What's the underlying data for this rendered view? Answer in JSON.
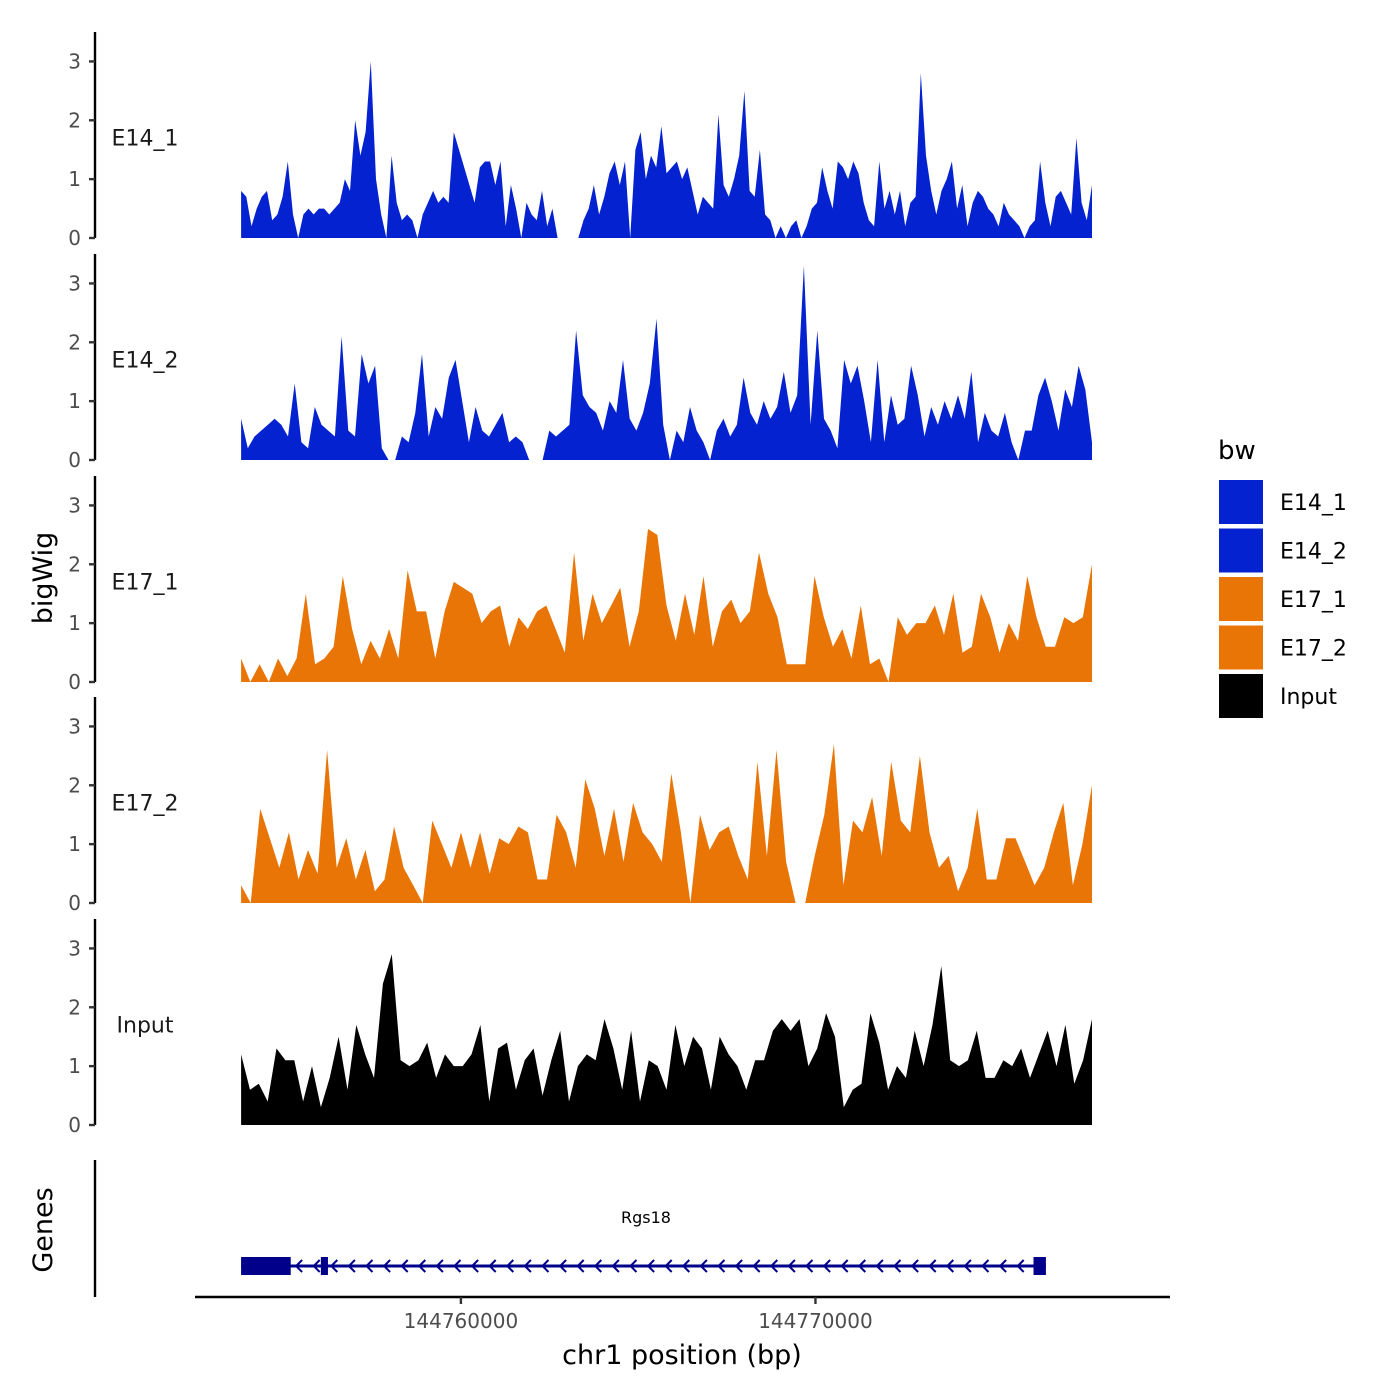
{
  "chart_data": {
    "type": "area",
    "ylabel": "bigWig",
    "xlabel": "chr1 position (bp)",
    "ylim": [
      0,
      3.5
    ],
    "yticks": [
      "0",
      "1",
      "2",
      "3"
    ],
    "xlim": [
      144752500,
      144780000
    ],
    "xticks": [
      {
        "value": 144760000,
        "label": "144760000"
      },
      {
        "value": 144770000,
        "label": "144770000"
      }
    ],
    "x_start": 144753800,
    "x_end": 144777800,
    "legend": {
      "title": "bw",
      "position": "right",
      "entries": [
        {
          "label": "E14_1",
          "color": "#0522D1"
        },
        {
          "label": "E14_2",
          "color": "#0522D1"
        },
        {
          "label": "E17_1",
          "color": "#E87506"
        },
        {
          "label": "E17_2",
          "color": "#E87506"
        },
        {
          "label": "Input",
          "color": "#000000"
        }
      ]
    },
    "series": [
      {
        "name": "E14_1",
        "color": "#0522D1",
        "values": [
          0.8,
          0.7,
          0.2,
          0.5,
          0.7,
          0.8,
          0.3,
          0.4,
          0.7,
          1.3,
          0.4,
          0.0,
          0.4,
          0.5,
          0.4,
          0.5,
          0.5,
          0.4,
          0.5,
          0.6,
          1.0,
          0.8,
          2.0,
          1.4,
          1.8,
          3.0,
          1.0,
          0.4,
          0.0,
          1.4,
          0.6,
          0.3,
          0.4,
          0.3,
          0.0,
          0.4,
          0.6,
          0.8,
          0.6,
          0.7,
          0.6,
          1.8,
          1.5,
          1.2,
          0.9,
          0.6,
          1.2,
          1.3,
          1.3,
          0.9,
          1.3,
          0.2,
          0.9,
          0.5,
          0.0,
          0.6,
          0.4,
          0.3,
          0.8,
          0.2,
          0.5,
          0.0,
          0.0,
          0.0,
          0.0,
          0.0,
          0.3,
          0.5,
          0.9,
          0.4,
          0.7,
          1.1,
          1.3,
          0.9,
          1.3,
          0.0,
          1.5,
          1.8,
          1.0,
          1.4,
          1.2,
          1.9,
          1.1,
          1.2,
          1.3,
          1.0,
          1.2,
          0.8,
          0.4,
          0.7,
          0.6,
          0.5,
          2.1,
          0.9,
          0.7,
          1.0,
          1.4,
          2.5,
          0.8,
          0.7,
          1.5,
          0.4,
          0.3,
          0.0,
          0.2,
          0.0,
          0.2,
          0.3,
          0.0,
          0.2,
          0.5,
          0.6,
          1.2,
          0.8,
          0.5,
          1.3,
          1.2,
          1.0,
          1.3,
          1.1,
          0.6,
          0.3,
          0.2,
          1.3,
          0.5,
          0.8,
          0.4,
          0.8,
          0.2,
          0.6,
          0.7,
          2.8,
          1.4,
          0.8,
          0.4,
          0.8,
          1.0,
          1.3,
          0.5,
          0.9,
          0.2,
          0.6,
          0.8,
          0.7,
          0.5,
          0.4,
          0.2,
          0.6,
          0.4,
          0.3,
          0.2,
          0.0,
          0.2,
          0.3,
          1.3,
          0.6,
          0.2,
          0.7,
          0.8,
          0.6,
          0.4,
          1.7,
          0.6,
          0.3,
          0.9
        ]
      },
      {
        "name": "E14_2",
        "color": "#0522D1",
        "values": [
          0.7,
          0.2,
          0.4,
          0.5,
          0.6,
          0.7,
          0.6,
          0.4,
          1.3,
          0.3,
          0.2,
          0.9,
          0.6,
          0.5,
          0.4,
          2.1,
          0.5,
          0.4,
          1.8,
          1.3,
          1.6,
          0.2,
          0.0,
          0.0,
          0.4,
          0.3,
          0.8,
          1.8,
          0.4,
          0.9,
          0.7,
          1.4,
          1.7,
          1.0,
          0.3,
          0.9,
          0.5,
          0.4,
          0.6,
          0.8,
          0.3,
          0.4,
          0.3,
          0.0,
          0.0,
          0.0,
          0.5,
          0.4,
          0.5,
          0.6,
          2.2,
          1.1,
          0.9,
          0.8,
          0.5,
          1.0,
          0.8,
          1.7,
          0.7,
          0.5,
          0.8,
          1.3,
          2.4,
          0.6,
          0.0,
          0.5,
          0.3,
          0.9,
          0.5,
          0.3,
          0.0,
          0.5,
          0.7,
          0.4,
          0.6,
          1.4,
          0.8,
          0.6,
          1.0,
          0.7,
          0.9,
          1.5,
          0.8,
          1.1,
          3.3,
          0.6,
          2.2,
          0.7,
          0.5,
          0.2,
          1.7,
          1.3,
          1.6,
          1.0,
          0.3,
          1.7,
          0.3,
          1.1,
          0.6,
          0.7,
          1.6,
          1.1,
          0.4,
          0.9,
          0.6,
          1.0,
          0.7,
          1.1,
          0.7,
          1.5,
          0.3,
          0.8,
          0.5,
          0.4,
          0.8,
          0.3,
          0.0,
          0.5,
          0.5,
          1.1,
          1.4,
          1.0,
          0.5,
          1.2,
          0.9,
          1.6,
          1.2,
          0.3
        ]
      },
      {
        "name": "E17_1",
        "color": "#E87506",
        "values": [
          0.4,
          0.0,
          0.3,
          0.0,
          0.4,
          0.1,
          0.4,
          1.5,
          0.3,
          0.4,
          0.6,
          1.8,
          0.9,
          0.3,
          0.7,
          0.4,
          0.9,
          0.4,
          1.9,
          1.2,
          1.2,
          0.4,
          1.2,
          1.7,
          1.6,
          1.5,
          1.0,
          1.2,
          1.3,
          0.6,
          1.1,
          0.9,
          1.2,
          1.3,
          0.9,
          0.5,
          2.2,
          0.7,
          1.5,
          1.0,
          1.3,
          1.6,
          0.6,
          1.2,
          2.6,
          2.5,
          1.3,
          0.7,
          1.5,
          0.8,
          1.8,
          0.6,
          1.2,
          1.4,
          1.0,
          1.2,
          2.2,
          1.5,
          1.1,
          0.3,
          0.3,
          0.3,
          1.8,
          1.1,
          0.6,
          0.9,
          0.4,
          1.3,
          0.3,
          0.4,
          0.0,
          1.1,
          0.8,
          1.0,
          1.0,
          1.3,
          0.8,
          1.5,
          0.5,
          0.6,
          1.5,
          1.1,
          0.5,
          1.0,
          0.7,
          1.8,
          1.1,
          0.6,
          0.6,
          1.1,
          1.0,
          1.1,
          2.0
        ]
      },
      {
        "name": "E17_2",
        "color": "#E87506",
        "values": [
          0.3,
          0.0,
          1.6,
          1.1,
          0.6,
          1.2,
          0.4,
          0.9,
          0.5,
          2.6,
          0.6,
          1.1,
          0.4,
          0.9,
          0.2,
          0.4,
          1.3,
          0.6,
          0.3,
          0.0,
          1.4,
          1.0,
          0.6,
          1.2,
          0.6,
          1.2,
          0.5,
          1.1,
          1.0,
          1.3,
          1.2,
          0.4,
          0.4,
          1.5,
          1.2,
          0.6,
          2.1,
          1.6,
          0.8,
          1.6,
          0.7,
          1.7,
          1.2,
          1.0,
          0.7,
          2.2,
          1.2,
          0.0,
          1.5,
          0.9,
          1.2,
          1.3,
          0.8,
          0.4,
          2.4,
          0.8,
          2.6,
          0.7,
          0.0,
          0.0,
          0.8,
          1.5,
          2.7,
          0.3,
          1.4,
          1.2,
          1.8,
          0.8,
          2.4,
          1.4,
          1.2,
          2.5,
          1.2,
          0.6,
          0.8,
          0.2,
          0.6,
          1.6,
          0.4,
          0.4,
          1.1,
          1.1,
          0.7,
          0.3,
          0.6,
          1.2,
          1.7,
          0.3,
          1.0,
          2.0
        ]
      },
      {
        "name": "Input",
        "color": "#000000",
        "values": [
          1.2,
          0.6,
          0.7,
          0.4,
          1.3,
          1.1,
          1.1,
          0.4,
          1.0,
          0.3,
          0.8,
          1.5,
          0.6,
          1.7,
          1.2,
          0.8,
          2.4,
          2.9,
          1.1,
          1.0,
          1.1,
          1.4,
          0.8,
          1.2,
          1.0,
          1.0,
          1.2,
          1.7,
          0.4,
          1.3,
          1.4,
          0.6,
          1.1,
          1.3,
          0.5,
          1.1,
          1.6,
          0.4,
          1.0,
          1.2,
          1.1,
          1.8,
          1.3,
          0.6,
          1.6,
          0.4,
          1.1,
          1.0,
          0.6,
          1.7,
          1.0,
          1.5,
          1.3,
          0.6,
          1.5,
          1.2,
          1.0,
          0.6,
          1.1,
          1.1,
          1.6,
          1.8,
          1.6,
          1.8,
          1.0,
          1.3,
          1.9,
          1.5,
          0.3,
          0.6,
          0.7,
          1.9,
          1.4,
          0.6,
          1.0,
          0.8,
          1.6,
          1.0,
          1.7,
          2.7,
          1.1,
          1.0,
          1.1,
          1.6,
          0.8,
          0.8,
          1.1,
          1.0,
          1.3,
          0.8,
          1.2,
          1.6,
          1.0,
          1.7,
          0.7,
          1.1,
          1.8
        ]
      }
    ],
    "genes_track": {
      "ylabel": "Genes",
      "gene": {
        "name": "Rgs18",
        "strand": "-",
        "start": 144753800,
        "end": 144776500,
        "exons": [
          {
            "start": 144753800,
            "end": 144755200
          },
          {
            "start": 144756050,
            "end": 144756250
          },
          {
            "start": 144776150,
            "end": 144776500
          }
        ]
      }
    }
  }
}
